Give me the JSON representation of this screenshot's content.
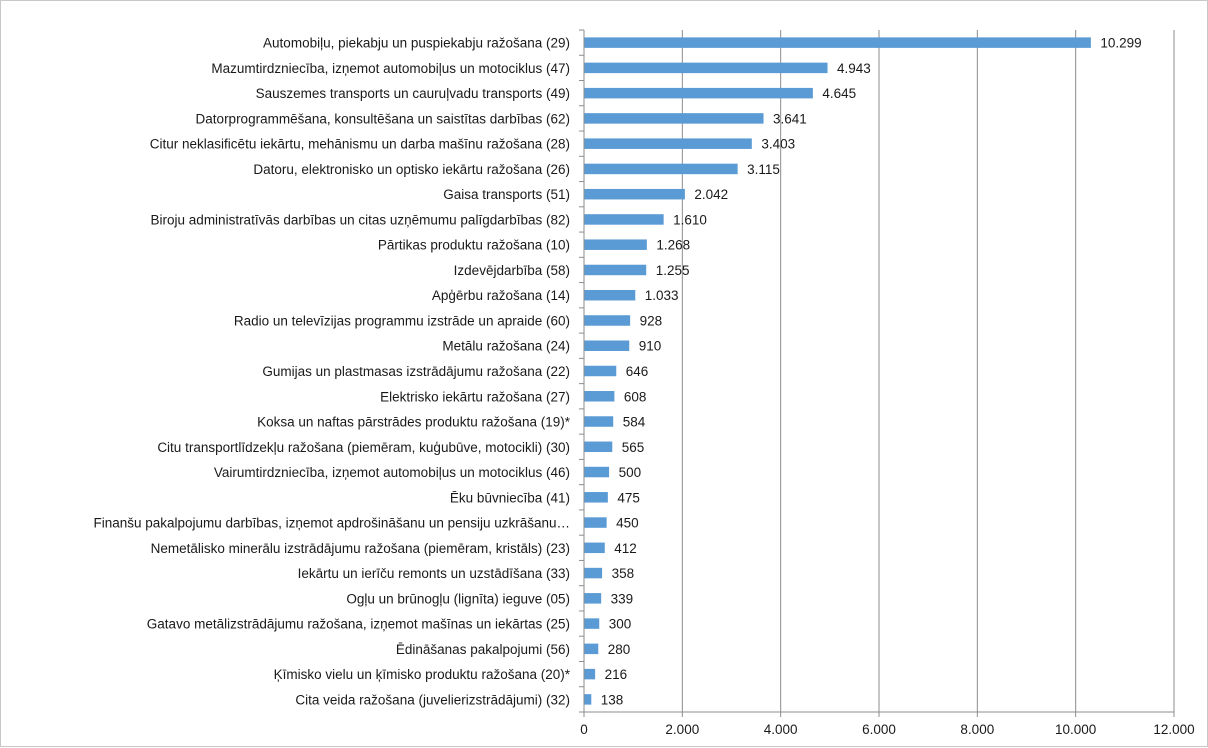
{
  "chart_data": {
    "type": "bar",
    "orientation": "horizontal",
    "title": "",
    "xlabel": "",
    "ylabel": "",
    "xlim": [
      0,
      12000
    ],
    "grid": true,
    "legend": "none",
    "bar_color": "#5b9bd5",
    "grid_color": "#8c8c8c",
    "x_ticks": [
      {
        "value": 0,
        "label": "0"
      },
      {
        "value": 2000,
        "label": "2.000"
      },
      {
        "value": 4000,
        "label": "4.000"
      },
      {
        "value": 6000,
        "label": "6.000"
      },
      {
        "value": 8000,
        "label": "8.000"
      },
      {
        "value": 10000,
        "label": "10.000"
      },
      {
        "value": 12000,
        "label": "12.000"
      }
    ],
    "categories": [
      "Automobiļu, piekabju un puspiekabju ražošana (29)",
      "Mazumtirdzniecība, izņemot automobiļus un motociklus (47)",
      "Sauszemes transports un cauruļvadu transports (49)",
      "Datorprogrammēšana, konsultēšana un saistītas darbības (62)",
      "Citur neklasificētu iekārtu, mehānismu un darba mašīnu ražošana (28)",
      "Datoru, elektronisko un optisko iekārtu ražošana (26)",
      "Gaisa transports (51)",
      "Biroju administratīvās darbības un citas uzņēmumu palīgdarbības (82)",
      "Pārtikas produktu ražošana (10)",
      "Izdevējdarbība (58)",
      "Apģērbu ražošana (14)",
      "Radio un televīzijas programmu izstrāde un apraide (60)",
      "Metālu ražošana (24)",
      "Gumijas un plastmasas izstrādājumu ražošana (22)",
      "Elektrisko iekārtu ražošana (27)",
      "Koksa un naftas pārstrādes produktu ražošana (19)*",
      "Citu transportlīdzekļu ražošana (piemēram, kuģubūve, motocikli) (30)",
      "Vairumtirdzniecība, izņemot automobiļus un motociklus (46)",
      "Ēku būvniecība (41)",
      "Finanšu pakalpojumu darbības, izņemot apdrošināšanu un pensiju uzkrāšanu…",
      "Nemetālisko minerālu izstrādājumu ražošana (piemēram, kristāls) (23)",
      "Iekārtu un ierīču remonts un uzstādīšana (33)",
      "Ogļu un brūnogļu (lignīta) ieguve (05)",
      "Gatavo metālizstrādājumu ražošana, izņemot mašīnas un iekārtas (25)",
      "Ēdināšanas pakalpojumi (56)",
      "Ķīmisko vielu un ķīmisko produktu ražošana (20)*",
      "Cita veida ražošana (juvelierizstrādājumi) (32)"
    ],
    "values": [
      10299,
      4943,
      4645,
      3641,
      3403,
      3115,
      2042,
      1610,
      1268,
      1255,
      1033,
      928,
      910,
      646,
      608,
      584,
      565,
      500,
      475,
      450,
      412,
      358,
      339,
      300,
      280,
      216,
      138
    ],
    "value_labels": [
      "10.299",
      "4.943",
      "4.645",
      "3.641",
      "3.403",
      "3.115",
      "2.042",
      "1.610",
      "1.268",
      "1.255",
      "1.033",
      "928",
      "910",
      "646",
      "608",
      "584",
      "565",
      "500",
      "475",
      "450",
      "412",
      "358",
      "339",
      "300",
      "280",
      "216",
      "138"
    ]
  }
}
